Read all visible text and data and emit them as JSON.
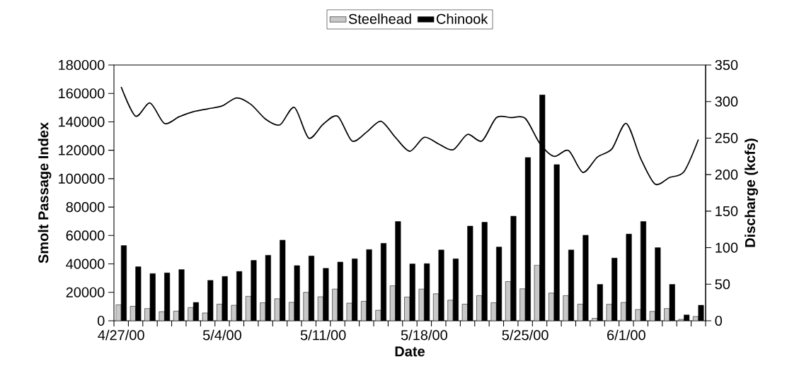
{
  "chart_data": {
    "type": "bar",
    "legend": "top",
    "xlabel": "Date",
    "ylabel": "Smolt Passage Index",
    "y2label": "Discharge (kcfs)",
    "categories": [
      "4/27/00",
      null,
      null,
      null,
      null,
      null,
      null,
      "5/4/00",
      null,
      null,
      null,
      null,
      null,
      null,
      "5/11/00",
      null,
      null,
      null,
      null,
      null,
      null,
      "5/18/00",
      null,
      null,
      null,
      null,
      null,
      null,
      "5/25/00",
      null,
      null,
      null,
      null,
      null,
      null,
      "6/1/00",
      null,
      null,
      null,
      null,
      null
    ],
    "ylim": [
      0,
      180000
    ],
    "yticks": [
      0,
      20000,
      40000,
      60000,
      80000,
      100000,
      120000,
      140000,
      160000,
      180000
    ],
    "y2lim": [
      0,
      350
    ],
    "y2ticks": [
      0,
      50,
      100,
      150,
      200,
      250,
      300,
      350
    ],
    "series": [
      {
        "name": "Steelhead",
        "color": "#c8c8c8",
        "values": [
          11200,
          10200,
          8600,
          6400,
          6800,
          9300,
          5500,
          11700,
          10900,
          17200,
          12700,
          15500,
          13000,
          20000,
          16900,
          22300,
          12400,
          13700,
          7400,
          24600,
          16700,
          22300,
          19000,
          14500,
          11700,
          17700,
          12700,
          27600,
          22500,
          39200,
          19500,
          17700,
          11700,
          1700,
          11600,
          12900,
          7900,
          6600,
          8600,
          1000,
          3000
        ]
      },
      {
        "name": "Chinook",
        "color": "#000000",
        "values": [
          52900,
          38000,
          33200,
          33700,
          36000,
          12900,
          28400,
          31200,
          34700,
          42500,
          46100,
          56700,
          38800,
          45600,
          36900,
          41300,
          43600,
          50100,
          54500,
          69900,
          40000,
          40200,
          49800,
          43600,
          66600,
          69300,
          51900,
          73600,
          114900,
          159000,
          109900,
          49800,
          60200,
          25600,
          44100,
          61000,
          69900,
          51400,
          25600,
          4100,
          10900
        ]
      },
      {
        "type": "line",
        "axis": "y2",
        "color": "#000000",
        "values": [
          320,
          280,
          298,
          270,
          279,
          286,
          290,
          294,
          305,
          296,
          276,
          268,
          292,
          250,
          269,
          280,
          246,
          258,
          273,
          251,
          232,
          251,
          242,
          234,
          255,
          246,
          278,
          278,
          277,
          243,
          225,
          233,
          203,
          224,
          235,
          270,
          222,
          187,
          196,
          204,
          248
        ]
      }
    ]
  }
}
